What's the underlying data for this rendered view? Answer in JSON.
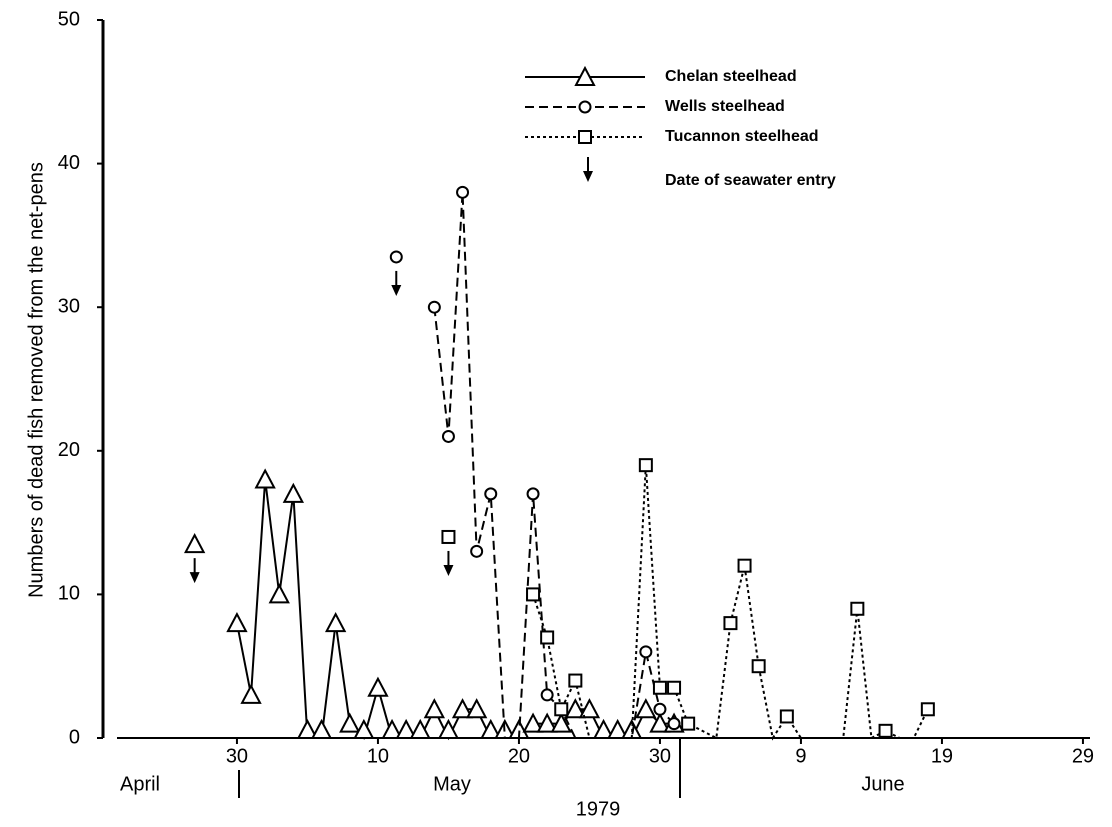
{
  "chart_data": {
    "type": "line",
    "y_label": "Numbers of dead fish removed from the net-pens",
    "x_label": "1979",
    "months": [
      "April",
      "May",
      "June"
    ],
    "entry_label": "Date of seawater entry",
    "xlim": [
      -9.5,
      60.5
    ],
    "xticks": [
      {
        "value": 0,
        "label": "30"
      },
      {
        "value": 10,
        "label": "10"
      },
      {
        "value": 20,
        "label": "20"
      },
      {
        "value": 30,
        "label": "30"
      },
      {
        "value": 40,
        "label": "9"
      },
      {
        "value": 50,
        "label": "19"
      },
      {
        "value": 60,
        "label": "29"
      }
    ],
    "ylim": [
      0,
      50
    ],
    "yticks": [
      0,
      10,
      20,
      30,
      40,
      50
    ],
    "series": [
      {
        "name": "Chelan steelhead",
        "color": "#000000",
        "dash": "solid",
        "marker": "triangle",
        "x": [
          0,
          1,
          2,
          3,
          4,
          5,
          6,
          7,
          8,
          9,
          10,
          11,
          12,
          13,
          14,
          15,
          16,
          17,
          18,
          19,
          20,
          21,
          22,
          23,
          24,
          25,
          26,
          27,
          28,
          29,
          30,
          31
        ],
        "values": [
          8,
          3,
          18,
          10,
          17,
          0,
          0,
          8,
          1,
          0,
          3.5,
          0,
          0,
          0,
          2,
          0,
          2,
          2,
          0,
          0,
          0,
          1,
          1,
          1,
          2,
          2,
          0,
          0,
          0,
          2,
          1,
          1
        ],
        "entry": {
          "x": -3,
          "y": 13.5
        }
      },
      {
        "name": "Wells steelhead",
        "color": "#000000",
        "dash": "dashed",
        "marker": "circle",
        "x": [
          14,
          15,
          16,
          17,
          18,
          19,
          20,
          21,
          22,
          23,
          24,
          28,
          29,
          30,
          31
        ],
        "values": [
          30,
          21,
          38,
          13,
          17,
          0,
          0,
          17,
          3,
          2,
          0,
          0,
          6,
          2,
          1
        ],
        "entry": {
          "x": 11.3,
          "y": 33.5
        }
      },
      {
        "name": "Tucannon steelhead",
        "color": "#000000",
        "dash": "dotted",
        "marker": "square",
        "x": [
          21,
          22,
          23,
          24,
          25,
          28,
          29,
          30,
          31,
          32,
          34,
          35,
          36,
          37,
          38,
          39,
          40,
          43,
          44,
          45,
          46,
          47,
          48,
          49
        ],
        "values": [
          10,
          7,
          2,
          4,
          0,
          0,
          19,
          3.5,
          3.5,
          1,
          0,
          8,
          12,
          5,
          0,
          1.5,
          0,
          0,
          9,
          0,
          0.5,
          0,
          0,
          2
        ],
        "entry": {
          "x": 15,
          "y": 14
        }
      }
    ]
  }
}
